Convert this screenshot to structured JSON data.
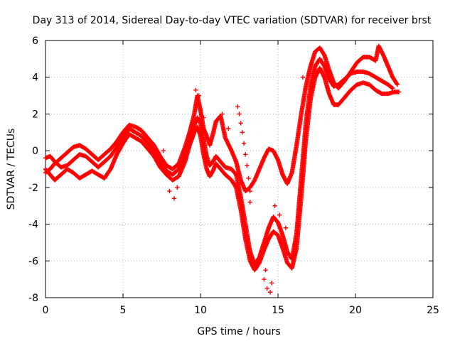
{
  "chart_data": {
    "type": "scatter",
    "title": "Day 313 of 2014, Sidereal Day-to-day VTEC variation (SDTVAR) for receiver brst",
    "xlabel": "GPS time / hours",
    "ylabel": "SDTVAR / TECUs",
    "xlim": [
      0,
      25
    ],
    "ylim": [
      -8,
      6
    ],
    "xticks": [
      "0",
      "5",
      "10",
      "15",
      "20",
      "25"
    ],
    "yticks": [
      "-8",
      "-6",
      "-4",
      "-2",
      "0",
      "2",
      "4",
      "6"
    ],
    "grid": true,
    "marker": "plus",
    "color": "#ff0000",
    "series": [
      {
        "points": [
          [
            0.0,
            -0.4
          ],
          [
            0.3,
            -0.3
          ],
          [
            0.6,
            -0.6
          ],
          [
            1.0,
            -0.9
          ],
          [
            1.4,
            -0.8
          ],
          [
            1.8,
            -0.5
          ],
          [
            2.2,
            -0.2
          ],
          [
            2.6,
            -0.3
          ],
          [
            3.0,
            -0.6
          ],
          [
            3.4,
            -0.9
          ],
          [
            3.8,
            -0.6
          ],
          [
            4.2,
            -0.3
          ],
          [
            4.6,
            0.2
          ],
          [
            5.0,
            0.7
          ],
          [
            5.4,
            1.2
          ],
          [
            5.8,
            1.0
          ],
          [
            6.2,
            0.8
          ],
          [
            6.6,
            0.4
          ],
          [
            7.0,
            0.0
          ],
          [
            7.4,
            -0.6
          ],
          [
            7.8,
            -1.1
          ],
          [
            8.2,
            -1.3
          ],
          [
            8.6,
            -1.0
          ],
          [
            9.0,
            -0.2
          ],
          [
            9.3,
            0.7
          ],
          [
            9.6,
            1.4
          ],
          [
            9.8,
            1.8
          ],
          [
            10.0,
            1.5
          ],
          [
            10.2,
            0.6
          ],
          [
            10.4,
            -0.3
          ],
          [
            10.6,
            -0.8
          ],
          [
            10.8,
            -0.6
          ],
          [
            11.0,
            -0.3
          ],
          [
            11.3,
            -0.6
          ],
          [
            11.6,
            -0.9
          ],
          [
            12.0,
            -1.0
          ],
          [
            12.3,
            -1.3
          ],
          [
            12.6,
            -2.5
          ],
          [
            12.9,
            -4.0
          ],
          [
            13.2,
            -5.5
          ],
          [
            13.5,
            -6.2
          ],
          [
            13.8,
            -5.8
          ],
          [
            14.1,
            -5.0
          ],
          [
            14.4,
            -4.2
          ],
          [
            14.7,
            -3.6
          ],
          [
            15.0,
            -3.9
          ],
          [
            15.3,
            -4.6
          ],
          [
            15.6,
            -5.5
          ],
          [
            15.9,
            -5.9
          ],
          [
            16.2,
            -4.5
          ],
          [
            16.5,
            -1.5
          ],
          [
            16.8,
            1.5
          ],
          [
            17.1,
            3.5
          ],
          [
            17.4,
            4.6
          ],
          [
            17.7,
            5.0
          ],
          [
            18.0,
            4.6
          ],
          [
            18.3,
            3.9
          ],
          [
            18.6,
            3.5
          ],
          [
            18.9,
            3.6
          ],
          [
            19.3,
            3.9
          ],
          [
            19.7,
            4.2
          ],
          [
            20.1,
            4.3
          ],
          [
            20.5,
            4.3
          ],
          [
            20.9,
            4.2
          ],
          [
            21.3,
            4.0
          ],
          [
            21.7,
            3.8
          ],
          [
            22.1,
            3.6
          ],
          [
            22.4,
            3.4
          ]
        ]
      },
      {
        "points": [
          [
            0.0,
            -1.0
          ],
          [
            0.3,
            -1.3
          ],
          [
            0.6,
            -1.6
          ],
          [
            1.0,
            -1.3
          ],
          [
            1.4,
            -1.0
          ],
          [
            1.8,
            -1.2
          ],
          [
            2.2,
            -1.5
          ],
          [
            2.6,
            -1.3
          ],
          [
            3.0,
            -1.1
          ],
          [
            3.4,
            -1.3
          ],
          [
            3.8,
            -1.5
          ],
          [
            4.2,
            -1.0
          ],
          [
            4.6,
            -0.2
          ],
          [
            5.0,
            0.4
          ],
          [
            5.4,
            0.9
          ],
          [
            5.8,
            0.7
          ],
          [
            6.2,
            0.5
          ],
          [
            6.6,
            0.1
          ],
          [
            7.0,
            -0.3
          ],
          [
            7.4,
            -0.9
          ],
          [
            7.8,
            -1.3
          ],
          [
            8.2,
            -1.6
          ],
          [
            8.6,
            -1.4
          ],
          [
            9.0,
            -0.6
          ],
          [
            9.3,
            0.3
          ],
          [
            9.6,
            1.0
          ],
          [
            9.8,
            1.3
          ],
          [
            10.0,
            0.8
          ],
          [
            10.2,
            -0.2
          ],
          [
            10.4,
            -1.0
          ],
          [
            10.6,
            -1.4
          ],
          [
            10.8,
            -1.1
          ],
          [
            11.0,
            -0.7
          ],
          [
            11.3,
            -1.0
          ],
          [
            11.6,
            -1.3
          ],
          [
            12.0,
            -1.6
          ],
          [
            12.3,
            -2.0
          ],
          [
            12.6,
            -3.2
          ],
          [
            12.9,
            -4.8
          ],
          [
            13.2,
            -6.0
          ],
          [
            13.5,
            -6.5
          ],
          [
            13.8,
            -6.1
          ],
          [
            14.1,
            -5.4
          ],
          [
            14.4,
            -4.8
          ],
          [
            14.7,
            -4.4
          ],
          [
            15.0,
            -4.6
          ],
          [
            15.3,
            -5.3
          ],
          [
            15.6,
            -6.1
          ],
          [
            15.9,
            -6.4
          ],
          [
            16.2,
            -5.3
          ],
          [
            16.5,
            -2.5
          ],
          [
            16.8,
            0.6
          ],
          [
            17.1,
            2.8
          ],
          [
            17.4,
            4.0
          ],
          [
            17.7,
            4.5
          ],
          [
            18.0,
            4.0
          ],
          [
            18.3,
            3.1
          ],
          [
            18.6,
            2.5
          ],
          [
            18.9,
            2.5
          ],
          [
            19.3,
            2.9
          ],
          [
            19.7,
            3.3
          ],
          [
            20.1,
            3.6
          ],
          [
            20.5,
            3.7
          ],
          [
            20.9,
            3.6
          ],
          [
            21.3,
            3.3
          ],
          [
            21.7,
            3.1
          ],
          [
            22.1,
            3.1
          ],
          [
            22.5,
            3.2
          ],
          [
            22.8,
            3.2
          ]
        ]
      },
      {
        "points": [
          [
            0.0,
            -1.2
          ],
          [
            0.3,
            -1.0
          ],
          [
            0.6,
            -0.7
          ],
          [
            1.0,
            -0.4
          ],
          [
            1.4,
            -0.1
          ],
          [
            1.8,
            0.2
          ],
          [
            2.2,
            0.3
          ],
          [
            2.6,
            0.1
          ],
          [
            3.0,
            -0.2
          ],
          [
            3.4,
            -0.5
          ],
          [
            3.8,
            -0.2
          ],
          [
            4.2,
            0.1
          ],
          [
            4.6,
            0.5
          ],
          [
            5.0,
            1.0
          ],
          [
            5.4,
            1.4
          ],
          [
            5.8,
            1.3
          ],
          [
            6.2,
            1.1
          ],
          [
            6.6,
            0.7
          ],
          [
            7.0,
            0.3
          ],
          [
            7.4,
            -0.3
          ],
          [
            7.8,
            -0.8
          ],
          [
            8.2,
            -1.0
          ],
          [
            8.6,
            -0.7
          ],
          [
            9.0,
            0.2
          ],
          [
            9.3,
            1.0
          ],
          [
            9.6,
            2.0
          ],
          [
            9.8,
            3.0
          ],
          [
            10.0,
            2.2
          ],
          [
            10.2,
            1.2
          ],
          [
            10.4,
            0.8
          ],
          [
            10.6,
            0.3
          ],
          [
            10.8,
            0.9
          ],
          [
            11.0,
            1.6
          ],
          [
            11.3,
            1.9
          ],
          [
            11.6,
            0.7
          ],
          [
            12.0,
            0.0
          ],
          [
            12.3,
            -0.6
          ],
          [
            12.6,
            -1.6
          ],
          [
            12.9,
            -2.2
          ],
          [
            13.2,
            -2.0
          ],
          [
            13.5,
            -1.6
          ],
          [
            13.8,
            -1.0
          ],
          [
            14.1,
            -0.4
          ],
          [
            14.4,
            0.1
          ],
          [
            14.7,
            0.0
          ],
          [
            15.0,
            -0.5
          ],
          [
            15.3,
            -1.3
          ],
          [
            15.6,
            -1.8
          ],
          [
            15.9,
            -1.2
          ],
          [
            16.2,
            0.3
          ],
          [
            16.5,
            2.0
          ],
          [
            16.8,
            3.5
          ],
          [
            17.1,
            4.6
          ],
          [
            17.4,
            5.4
          ],
          [
            17.7,
            5.6
          ],
          [
            18.0,
            5.2
          ],
          [
            18.3,
            4.4
          ],
          [
            18.6,
            3.7
          ],
          [
            18.9,
            3.4
          ],
          [
            19.3,
            3.8
          ],
          [
            19.7,
            4.3
          ],
          [
            20.1,
            4.8
          ],
          [
            20.5,
            5.1
          ],
          [
            20.9,
            5.1
          ],
          [
            21.3,
            4.9
          ],
          [
            21.5,
            5.7
          ],
          [
            21.8,
            5.2
          ],
          [
            22.1,
            4.6
          ],
          [
            22.4,
            4.0
          ],
          [
            22.7,
            3.6
          ]
        ]
      },
      {
        "points": [
          [
            12.4,
            2.4
          ],
          [
            12.5,
            2.0
          ],
          [
            12.6,
            1.5
          ],
          [
            12.7,
            1.0
          ],
          [
            12.8,
            0.4
          ],
          [
            12.9,
            -0.2
          ],
          [
            13.0,
            -0.8
          ],
          [
            13.1,
            -1.5
          ],
          [
            13.2,
            -2.2
          ],
          [
            13.2,
            -2.8
          ],
          [
            14.1,
            -7.0
          ],
          [
            14.3,
            -7.5
          ],
          [
            14.5,
            -7.7
          ],
          [
            14.6,
            -7.2
          ],
          [
            14.2,
            -6.5
          ],
          [
            14.8,
            -3.0
          ],
          [
            15.1,
            -3.5
          ],
          [
            15.5,
            -4.2
          ],
          [
            16.6,
            4.0
          ],
          [
            17.0,
            4.2
          ],
          [
            9.7,
            3.3
          ],
          [
            9.9,
            3.0
          ],
          [
            10.2,
            1.8
          ],
          [
            11.4,
            2.0
          ],
          [
            11.8,
            1.2
          ],
          [
            8.0,
            -2.2
          ],
          [
            8.3,
            -2.6
          ],
          [
            8.5,
            -2.0
          ],
          [
            7.6,
            0.0
          ],
          [
            6.0,
            1.2
          ]
        ]
      }
    ]
  }
}
